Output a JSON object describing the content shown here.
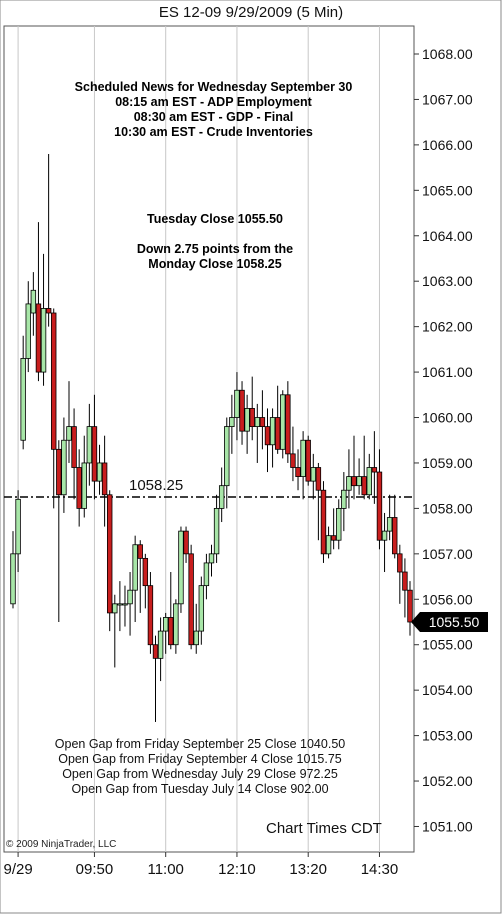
{
  "title": "ES 12-09  9/29/2009 (5 Min)",
  "news": {
    "heading": "Scheduled News for Wednesday September 30",
    "items": [
      "08:15 am EST - ADP Employment",
      "08:30 am EST - GDP - Final",
      "10:30 am EST - Crude Inventories"
    ]
  },
  "close_info": {
    "line1": "Tuesday Close 1055.50",
    "line2": "Down 2.75 points from the",
    "line3": "Monday Close 1058.25"
  },
  "gaps": [
    "Open Gap from Friday September 25 Close 1040.50",
    "Open Gap from Friday September 4 Close 1015.75",
    "Open Gap from Wednesday July 29 Close 972.25",
    "Open Gap from Tuesday July 14 Close 902.00"
  ],
  "copyright": "© 2009 NinjaTrader, LLC",
  "chart_times": "Chart Times CDT",
  "reference_line": {
    "value": 1058.25,
    "label": "1058.25"
  },
  "last_price": {
    "value": 1055.5,
    "label": "1055.50"
  },
  "chart_data": {
    "type": "candlestick",
    "title": "ES 12-09  9/29/2009 (5 Min)",
    "ylim": [
      1050.5,
      1068.5
    ],
    "y_ticks": [
      "1051.00",
      "1052.00",
      "1053.00",
      "1054.00",
      "1055.00",
      "1056.00",
      "1057.00",
      "1058.00",
      "1059.00",
      "1060.00",
      "1061.00",
      "1062.00",
      "1063.00",
      "1064.00",
      "1065.00",
      "1066.00",
      "1067.00",
      "1068.00"
    ],
    "x_ticks": [
      {
        "label": "9/29",
        "index": 1
      },
      {
        "label": "09:50",
        "index": 16
      },
      {
        "label": "11:00",
        "index": 30
      },
      {
        "label": "12:10",
        "index": 44
      },
      {
        "label": "13:20",
        "index": 58
      },
      {
        "label": "14:30",
        "index": 72
      }
    ],
    "up_color": "#a8e6a8",
    "down_color": "#c81e1e",
    "candles": [
      {
        "o": 1055.9,
        "h": 1057.5,
        "l": 1055.8,
        "c": 1057.0
      },
      {
        "o": 1057.0,
        "h": 1058.4,
        "l": 1056.6,
        "c": 1058.2
      },
      {
        "o": 1059.5,
        "h": 1061.8,
        "l": 1059.3,
        "c": 1061.3
      },
      {
        "o": 1061.3,
        "h": 1063.0,
        "l": 1061.0,
        "c": 1062.5
      },
      {
        "o": 1062.3,
        "h": 1063.2,
        "l": 1061.8,
        "c": 1062.8
      },
      {
        "o": 1062.5,
        "h": 1064.3,
        "l": 1060.8,
        "c": 1061.0
      },
      {
        "o": 1061.0,
        "h": 1063.6,
        "l": 1060.7,
        "c": 1062.4
      },
      {
        "o": 1062.4,
        "h": 1065.8,
        "l": 1062.0,
        "c": 1062.3
      },
      {
        "o": 1062.3,
        "h": 1062.4,
        "l": 1058.0,
        "c": 1059.3
      },
      {
        "o": 1059.3,
        "h": 1059.5,
        "l": 1055.5,
        "c": 1058.3
      },
      {
        "o": 1058.3,
        "h": 1060.0,
        "l": 1057.9,
        "c": 1059.5
      },
      {
        "o": 1059.5,
        "h": 1060.8,
        "l": 1059.0,
        "c": 1059.8
      },
      {
        "o": 1059.8,
        "h": 1060.2,
        "l": 1058.2,
        "c": 1058.9
      },
      {
        "o": 1058.9,
        "h": 1059.3,
        "l": 1057.6,
        "c": 1058.0
      },
      {
        "o": 1058.0,
        "h": 1059.6,
        "l": 1057.8,
        "c": 1059.0
      },
      {
        "o": 1059.0,
        "h": 1060.3,
        "l": 1058.5,
        "c": 1059.8
      },
      {
        "o": 1059.8,
        "h": 1060.5,
        "l": 1058.2,
        "c": 1058.6
      },
      {
        "o": 1058.6,
        "h": 1059.4,
        "l": 1058.3,
        "c": 1059.0
      },
      {
        "o": 1059.0,
        "h": 1059.6,
        "l": 1057.6,
        "c": 1058.3
      },
      {
        "o": 1058.3,
        "h": 1058.4,
        "l": 1055.3,
        "c": 1055.7
      },
      {
        "o": 1055.7,
        "h": 1056.1,
        "l": 1054.5,
        "c": 1055.9
      },
      {
        "o": 1055.9,
        "h": 1056.4,
        "l": 1055.3,
        "c": 1055.9
      },
      {
        "o": 1055.9,
        "h": 1056.3,
        "l": 1055.4,
        "c": 1055.9
      },
      {
        "o": 1055.9,
        "h": 1056.6,
        "l": 1055.2,
        "c": 1056.2
      },
      {
        "o": 1056.2,
        "h": 1057.4,
        "l": 1055.5,
        "c": 1057.2
      },
      {
        "o": 1057.2,
        "h": 1057.3,
        "l": 1055.7,
        "c": 1056.9
      },
      {
        "o": 1056.9,
        "h": 1057.0,
        "l": 1055.8,
        "c": 1056.3
      },
      {
        "o": 1056.3,
        "h": 1056.6,
        "l": 1054.8,
        "c": 1055.0
      },
      {
        "o": 1055.0,
        "h": 1055.2,
        "l": 1053.3,
        "c": 1054.7
      },
      {
        "o": 1054.7,
        "h": 1055.6,
        "l": 1054.2,
        "c": 1055.3
      },
      {
        "o": 1055.3,
        "h": 1055.7,
        "l": 1054.8,
        "c": 1055.6
      },
      {
        "o": 1055.6,
        "h": 1056.6,
        "l": 1054.9,
        "c": 1055.0
      },
      {
        "o": 1055.0,
        "h": 1056.0,
        "l": 1054.8,
        "c": 1055.9
      },
      {
        "o": 1055.9,
        "h": 1057.6,
        "l": 1055.7,
        "c": 1057.5
      },
      {
        "o": 1057.5,
        "h": 1057.6,
        "l": 1056.8,
        "c": 1057.0
      },
      {
        "o": 1057.0,
        "h": 1057.2,
        "l": 1054.9,
        "c": 1055.0
      },
      {
        "o": 1055.0,
        "h": 1055.9,
        "l": 1054.8,
        "c": 1055.3
      },
      {
        "o": 1055.3,
        "h": 1056.5,
        "l": 1055.0,
        "c": 1056.3
      },
      {
        "o": 1056.3,
        "h": 1057.0,
        "l": 1056.0,
        "c": 1056.8
      },
      {
        "o": 1056.8,
        "h": 1057.2,
        "l": 1056.5,
        "c": 1057.0
      },
      {
        "o": 1057.0,
        "h": 1058.3,
        "l": 1056.8,
        "c": 1058.0
      },
      {
        "o": 1058.0,
        "h": 1058.9,
        "l": 1057.7,
        "c": 1058.5
      },
      {
        "o": 1058.5,
        "h": 1060.0,
        "l": 1058.0,
        "c": 1059.8
      },
      {
        "o": 1059.8,
        "h": 1060.5,
        "l": 1059.2,
        "c": 1060.0
      },
      {
        "o": 1060.0,
        "h": 1061.0,
        "l": 1059.5,
        "c": 1060.6
      },
      {
        "o": 1060.6,
        "h": 1060.8,
        "l": 1059.4,
        "c": 1059.7
      },
      {
        "o": 1059.7,
        "h": 1060.5,
        "l": 1059.2,
        "c": 1060.2
      },
      {
        "o": 1060.2,
        "h": 1060.9,
        "l": 1059.5,
        "c": 1059.8
      },
      {
        "o": 1059.8,
        "h": 1060.3,
        "l": 1059.0,
        "c": 1060.0
      },
      {
        "o": 1060.0,
        "h": 1060.6,
        "l": 1059.3,
        "c": 1059.8
      },
      {
        "o": 1059.8,
        "h": 1060.2,
        "l": 1058.8,
        "c": 1059.4
      },
      {
        "o": 1059.4,
        "h": 1060.2,
        "l": 1058.9,
        "c": 1060.0
      },
      {
        "o": 1060.0,
        "h": 1060.7,
        "l": 1059.2,
        "c": 1059.3
      },
      {
        "o": 1059.3,
        "h": 1060.6,
        "l": 1059.1,
        "c": 1060.5
      },
      {
        "o": 1060.5,
        "h": 1060.8,
        "l": 1059.0,
        "c": 1059.2
      },
      {
        "o": 1059.2,
        "h": 1059.8,
        "l": 1058.6,
        "c": 1058.9
      },
      {
        "o": 1058.9,
        "h": 1059.3,
        "l": 1058.4,
        "c": 1058.7
      },
      {
        "o": 1058.7,
        "h": 1059.7,
        "l": 1058.2,
        "c": 1059.5
      },
      {
        "o": 1059.5,
        "h": 1059.6,
        "l": 1058.5,
        "c": 1058.6
      },
      {
        "o": 1058.6,
        "h": 1059.2,
        "l": 1058.2,
        "c": 1058.9
      },
      {
        "o": 1058.9,
        "h": 1059.0,
        "l": 1057.3,
        "c": 1058.4
      },
      {
        "o": 1058.4,
        "h": 1058.6,
        "l": 1056.8,
        "c": 1057.0
      },
      {
        "o": 1057.0,
        "h": 1057.6,
        "l": 1056.9,
        "c": 1057.4
      },
      {
        "o": 1057.4,
        "h": 1058.0,
        "l": 1057.1,
        "c": 1057.3
      },
      {
        "o": 1057.3,
        "h": 1058.2,
        "l": 1057.1,
        "c": 1058.0
      },
      {
        "o": 1058.0,
        "h": 1058.8,
        "l": 1057.5,
        "c": 1058.4
      },
      {
        "o": 1058.4,
        "h": 1059.3,
        "l": 1058.0,
        "c": 1058.7
      },
      {
        "o": 1058.7,
        "h": 1059.6,
        "l": 1058.2,
        "c": 1058.5
      },
      {
        "o": 1058.5,
        "h": 1059.1,
        "l": 1058.3,
        "c": 1058.7
      },
      {
        "o": 1058.7,
        "h": 1059.6,
        "l": 1058.2,
        "c": 1058.3
      },
      {
        "o": 1058.3,
        "h": 1059.2,
        "l": 1058.2,
        "c": 1058.9
      },
      {
        "o": 1058.9,
        "h": 1059.7,
        "l": 1058.1,
        "c": 1058.8
      },
      {
        "o": 1058.8,
        "h": 1059.3,
        "l": 1057.1,
        "c": 1057.3
      },
      {
        "o": 1057.3,
        "h": 1057.9,
        "l": 1056.6,
        "c": 1057.5
      },
      {
        "o": 1057.5,
        "h": 1058.3,
        "l": 1057.3,
        "c": 1057.8
      },
      {
        "o": 1057.8,
        "h": 1058.3,
        "l": 1056.9,
        "c": 1057.0
      },
      {
        "o": 1057.0,
        "h": 1057.2,
        "l": 1055.9,
        "c": 1056.6
      },
      {
        "o": 1056.6,
        "h": 1056.9,
        "l": 1055.6,
        "c": 1056.2
      },
      {
        "o": 1056.2,
        "h": 1056.4,
        "l": 1055.2,
        "c": 1055.5
      }
    ]
  }
}
